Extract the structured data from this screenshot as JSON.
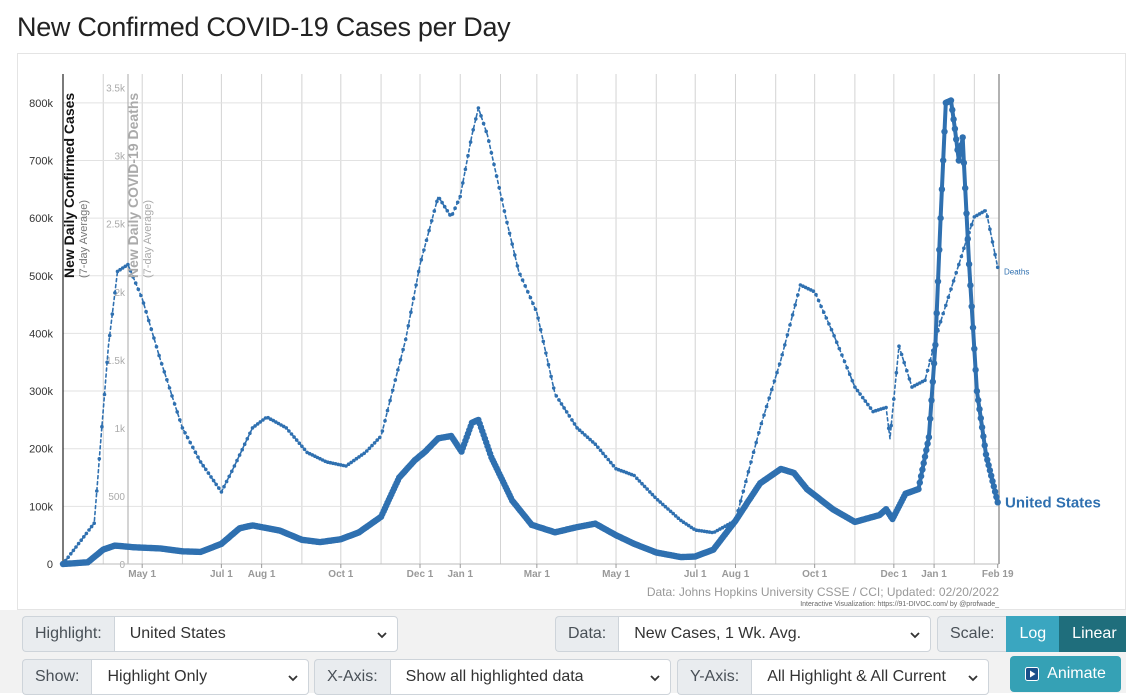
{
  "page": {
    "title": "New Confirmed COVID-19 Cases per Day"
  },
  "chart_data": {
    "type": "line",
    "ylabel": "New Daily Confirmed Cases",
    "ylabel_sub": "(7-day Average)",
    "y2label": "New Daily COVID-19 Deaths",
    "y2label_sub": "(7-day Average)",
    "ylim": [
      0,
      850000
    ],
    "y2lim": [
      0,
      3600
    ],
    "y_ticks": [
      0,
      100000,
      200000,
      300000,
      400000,
      500000,
      600000,
      700000,
      800000
    ],
    "y_tick_labels": [
      "0",
      "100k",
      "200k",
      "300k",
      "400k",
      "500k",
      "600k",
      "700k",
      "800k"
    ],
    "y2_ticks": [
      0,
      500,
      1000,
      1500,
      2000,
      2500,
      3000,
      3500
    ],
    "y2_tick_labels": [
      "0",
      "500",
      "1k",
      "1.5k",
      "2k",
      "2.5k",
      "3k",
      "3.5k"
    ],
    "x_ticks": [
      "2020-05-01",
      "2020-07-01",
      "2020-08-01",
      "2020-10-01",
      "2020-12-01",
      "2021-01-01",
      "2021-03-01",
      "2021-05-01",
      "2021-07-01",
      "2021-08-01",
      "2021-10-01",
      "2021-12-01",
      "2022-01-01",
      "2022-02-19"
    ],
    "x_tick_labels": [
      "May 1",
      "Jul 1",
      "Aug 1",
      "Oct 1",
      "Dec 1",
      "Jan 1",
      "Mar 1",
      "May 1",
      "Jul 1",
      "Aug 1",
      "Oct 1",
      "Dec 1",
      "Jan 1",
      "Feb 19"
    ],
    "grid": true,
    "series": [
      {
        "name": "United States",
        "color": "#2f70b0",
        "axis": "cases",
        "points": [
          [
            "2020-03-01",
            0
          ],
          [
            "2020-03-20",
            3000
          ],
          [
            "2020-04-01",
            25000
          ],
          [
            "2020-04-10",
            32000
          ],
          [
            "2020-04-25",
            29000
          ],
          [
            "2020-05-15",
            27000
          ],
          [
            "2020-06-01",
            22000
          ],
          [
            "2020-06-15",
            21000
          ],
          [
            "2020-07-01",
            35000
          ],
          [
            "2020-07-15",
            62000
          ],
          [
            "2020-07-25",
            67000
          ],
          [
            "2020-08-15",
            58000
          ],
          [
            "2020-09-01",
            42000
          ],
          [
            "2020-09-15",
            38000
          ],
          [
            "2020-10-01",
            43000
          ],
          [
            "2020-10-15",
            55000
          ],
          [
            "2020-11-01",
            82000
          ],
          [
            "2020-11-15",
            150000
          ],
          [
            "2020-11-27",
            180000
          ],
          [
            "2020-12-05",
            195000
          ],
          [
            "2020-12-15",
            218000
          ],
          [
            "2020-12-25",
            222000
          ],
          [
            "2021-01-02",
            195000
          ],
          [
            "2021-01-10",
            245000
          ],
          [
            "2021-01-15",
            250000
          ],
          [
            "2021-01-25",
            185000
          ],
          [
            "2021-02-10",
            110000
          ],
          [
            "2021-02-25",
            68000
          ],
          [
            "2021-03-15",
            55000
          ],
          [
            "2021-04-01",
            64000
          ],
          [
            "2021-04-15",
            70000
          ],
          [
            "2021-05-01",
            50000
          ],
          [
            "2021-05-15",
            35000
          ],
          [
            "2021-06-01",
            20000
          ],
          [
            "2021-06-20",
            12000
          ],
          [
            "2021-07-01",
            13000
          ],
          [
            "2021-07-15",
            25000
          ],
          [
            "2021-08-01",
            75000
          ],
          [
            "2021-08-20",
            140000
          ],
          [
            "2021-09-05",
            165000
          ],
          [
            "2021-09-15",
            158000
          ],
          [
            "2021-09-25",
            130000
          ],
          [
            "2021-10-15",
            95000
          ],
          [
            "2021-11-01",
            73000
          ],
          [
            "2021-11-20",
            85000
          ],
          [
            "2021-11-25",
            95000
          ],
          [
            "2021-11-30",
            78000
          ],
          [
            "2021-12-10",
            122000
          ],
          [
            "2021-12-20",
            130000
          ],
          [
            "2021-12-28",
            220000
          ],
          [
            "2022-01-02",
            380000
          ],
          [
            "2022-01-06",
            600000
          ],
          [
            "2022-01-10",
            800000
          ],
          [
            "2022-01-14",
            804000
          ],
          [
            "2022-01-17",
            755000
          ],
          [
            "2022-01-20",
            700000
          ],
          [
            "2022-01-23",
            740000
          ],
          [
            "2022-01-28",
            520000
          ],
          [
            "2022-02-03",
            300000
          ],
          [
            "2022-02-10",
            190000
          ],
          [
            "2022-02-19",
            107000
          ]
        ]
      },
      {
        "name": "Deaths",
        "color": "#2f70b0",
        "axis": "deaths",
        "dashed": true,
        "points": [
          [
            "2020-03-01",
            0
          ],
          [
            "2020-03-25",
            300
          ],
          [
            "2020-04-05",
            1600
          ],
          [
            "2020-04-12",
            2150
          ],
          [
            "2020-04-20",
            2200
          ],
          [
            "2020-05-01",
            1950
          ],
          [
            "2020-05-15",
            1500
          ],
          [
            "2020-06-01",
            1000
          ],
          [
            "2020-06-15",
            750
          ],
          [
            "2020-07-01",
            530
          ],
          [
            "2020-07-10",
            700
          ],
          [
            "2020-07-25",
            1000
          ],
          [
            "2020-08-05",
            1080
          ],
          [
            "2020-08-20",
            1000
          ],
          [
            "2020-09-05",
            820
          ],
          [
            "2020-09-20",
            750
          ],
          [
            "2020-10-05",
            720
          ],
          [
            "2020-10-20",
            820
          ],
          [
            "2020-11-01",
            940
          ],
          [
            "2020-11-20",
            1650
          ],
          [
            "2020-12-01",
            2200
          ],
          [
            "2020-12-15",
            2700
          ],
          [
            "2020-12-25",
            2550
          ],
          [
            "2021-01-01",
            2700
          ],
          [
            "2021-01-10",
            3150
          ],
          [
            "2021-01-15",
            3350
          ],
          [
            "2021-01-22",
            3150
          ],
          [
            "2021-02-05",
            2550
          ],
          [
            "2021-02-15",
            2150
          ],
          [
            "2021-03-01",
            1850
          ],
          [
            "2021-03-15",
            1250
          ],
          [
            "2021-04-01",
            1000
          ],
          [
            "2021-04-15",
            880
          ],
          [
            "2021-05-01",
            700
          ],
          [
            "2021-05-15",
            650
          ],
          [
            "2021-06-01",
            480
          ],
          [
            "2021-06-20",
            320
          ],
          [
            "2021-07-01",
            250
          ],
          [
            "2021-07-15",
            230
          ],
          [
            "2021-08-01",
            320
          ],
          [
            "2021-08-20",
            1000
          ],
          [
            "2021-09-05",
            1500
          ],
          [
            "2021-09-20",
            2050
          ],
          [
            "2021-10-01",
            2000
          ],
          [
            "2021-10-15",
            1700
          ],
          [
            "2021-11-01",
            1300
          ],
          [
            "2021-11-15",
            1120
          ],
          [
            "2021-11-25",
            1150
          ],
          [
            "2021-11-28",
            920
          ],
          [
            "2021-12-05",
            1600
          ],
          [
            "2021-12-15",
            1300
          ],
          [
            "2021-12-25",
            1350
          ],
          [
            "2022-01-05",
            1750
          ],
          [
            "2022-01-15",
            2050
          ],
          [
            "2022-01-25",
            2350
          ],
          [
            "2022-02-01",
            2550
          ],
          [
            "2022-02-10",
            2600
          ],
          [
            "2022-02-19",
            2180
          ]
        ]
      }
    ],
    "series_labels": {
      "highlight": "United States",
      "deaths": "Deaths"
    },
    "source_text": "Data: Johns Hopkins University CSSE / CCI; Updated: 02/20/2022",
    "credit_text": "Interactive Visualization: https://91-DIVOC.com/ by @profwade_"
  },
  "controls": {
    "highlight_label": "Highlight:",
    "highlight_value": "United States",
    "data_label": "Data:",
    "data_value": "New Cases, 1 Wk. Avg.",
    "scale_label": "Scale:",
    "scale_log": "Log",
    "scale_linear": "Linear",
    "show_label": "Show:",
    "show_value": "Highlight Only",
    "xaxis_label": "X-Axis:",
    "xaxis_value": "Show all highlighted data",
    "yaxis_label": "Y-Axis:",
    "yaxis_value": "All Highlight & All Current",
    "animate_label": "Animate"
  },
  "icons": {
    "select": "chevron-down-icon",
    "animate": "play-icon"
  },
  "colors": {
    "series": "#2f70b0",
    "accent": "#35a1b5",
    "scale_active": "#1f6e7c"
  }
}
